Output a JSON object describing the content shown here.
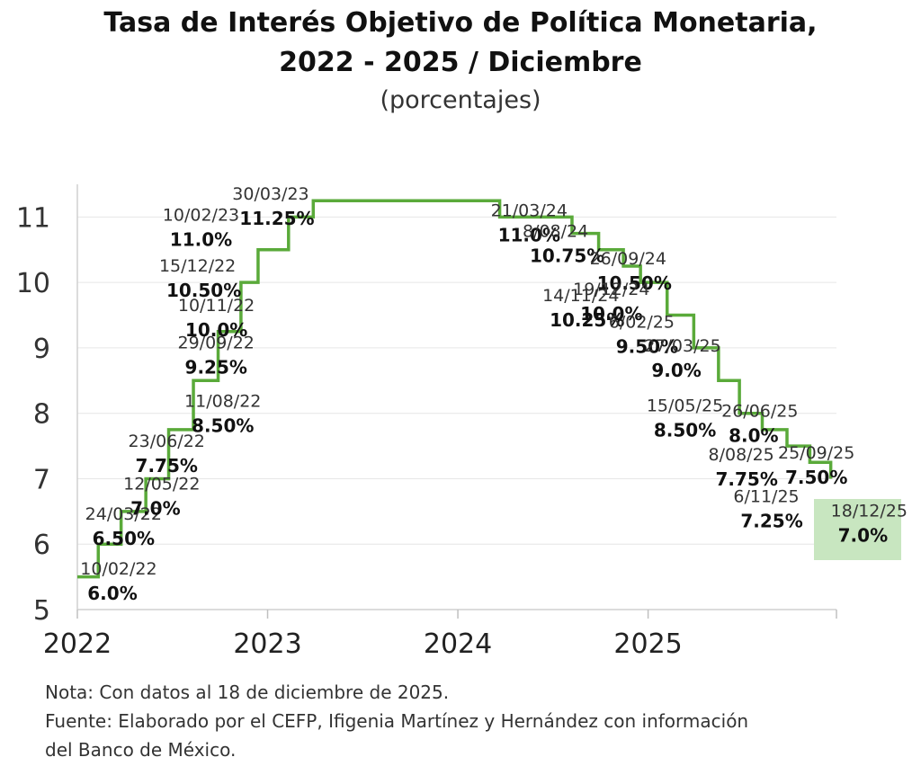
{
  "chart_data": {
    "type": "line",
    "step": true,
    "title": "Tasa de Interés Objetivo de Política Monetaria,",
    "title_line2": "2022 - 2025 / Diciembre",
    "subtitle": "(porcentajes)",
    "xlabel": "",
    "ylabel": "",
    "xlim": [
      2022.0,
      2025.99
    ],
    "ylim": [
      5,
      11.5
    ],
    "yticks": [
      5,
      6,
      7,
      8,
      9,
      10,
      11
    ],
    "xticks": [
      {
        "value": 2022.0,
        "label": "2022"
      },
      {
        "value": 2023.0,
        "label": "2023"
      },
      {
        "value": 2024.0,
        "label": "2024"
      },
      {
        "value": 2025.0,
        "label": "2025"
      }
    ],
    "series_color": "#5aaa3a",
    "start": {
      "x": 2022.0,
      "y": 5.5
    },
    "points": [
      {
        "date": "10/02/22",
        "x": 2022.11,
        "y": 6.0,
        "label": "6.0%"
      },
      {
        "date": "24/03/22",
        "x": 2022.23,
        "y": 6.5,
        "label": "6.50%"
      },
      {
        "date": "12/05/22",
        "x": 2022.36,
        "y": 7.0,
        "label": "7.0%"
      },
      {
        "date": "23/06/22",
        "x": 2022.48,
        "y": 7.75,
        "label": "7.75%"
      },
      {
        "date": "11/08/22",
        "x": 2022.61,
        "y": 8.5,
        "label": "8.50%"
      },
      {
        "date": "29/09/22",
        "x": 2022.74,
        "y": 9.25,
        "label": "9.25%"
      },
      {
        "date": "10/11/22",
        "x": 2022.86,
        "y": 10.0,
        "label": "10.0%"
      },
      {
        "date": "15/12/22",
        "x": 2022.95,
        "y": 10.5,
        "label": "10.50%"
      },
      {
        "date": "10/02/23",
        "x": 2023.11,
        "y": 11.0,
        "label": "11.0%"
      },
      {
        "date": "30/03/23",
        "x": 2023.24,
        "y": 11.25,
        "label": "11.25%"
      },
      {
        "date": "21/03/24",
        "x": 2024.22,
        "y": 11.0,
        "label": "11.0%"
      },
      {
        "date": "8/08/24",
        "x": 2024.6,
        "y": 10.75,
        "label": "10.75%"
      },
      {
        "date": "26/09/24",
        "x": 2024.74,
        "y": 10.5,
        "label": "10.50%"
      },
      {
        "date": "14/11/24",
        "x": 2024.87,
        "y": 10.25,
        "label": "10.25%"
      },
      {
        "date": "19/12/24",
        "x": 2024.96,
        "y": 10.0,
        "label": "10.0%"
      },
      {
        "date": "6/02/25",
        "x": 2025.1,
        "y": 9.5,
        "label": "9.50%"
      },
      {
        "date": "27/03/25",
        "x": 2025.24,
        "y": 9.0,
        "label": "9.0%"
      },
      {
        "date": "15/05/25",
        "x": 2025.37,
        "y": 8.5,
        "label": "8.50%"
      },
      {
        "date": "26/06/25",
        "x": 2025.48,
        "y": 8.0,
        "label": "8.0%"
      },
      {
        "date": "8/08/25",
        "x": 2025.6,
        "y": 7.75,
        "label": "7.75%"
      },
      {
        "date": "25/09/25",
        "x": 2025.73,
        "y": 7.5,
        "label": "7.50%"
      },
      {
        "date": "6/11/25",
        "x": 2025.85,
        "y": 7.25,
        "label": "7.25%"
      },
      {
        "date": "18/12/25",
        "x": 2025.96,
        "y": 7.0,
        "label": "7.0%",
        "highlight": true
      }
    ],
    "notes": [
      "Nota: Con datos al 18 de diciembre de 2025.",
      "Fuente: Elaborado por el CEFP, Ifigenia Martínez y Hernández con información",
      "del Banco de México."
    ]
  }
}
